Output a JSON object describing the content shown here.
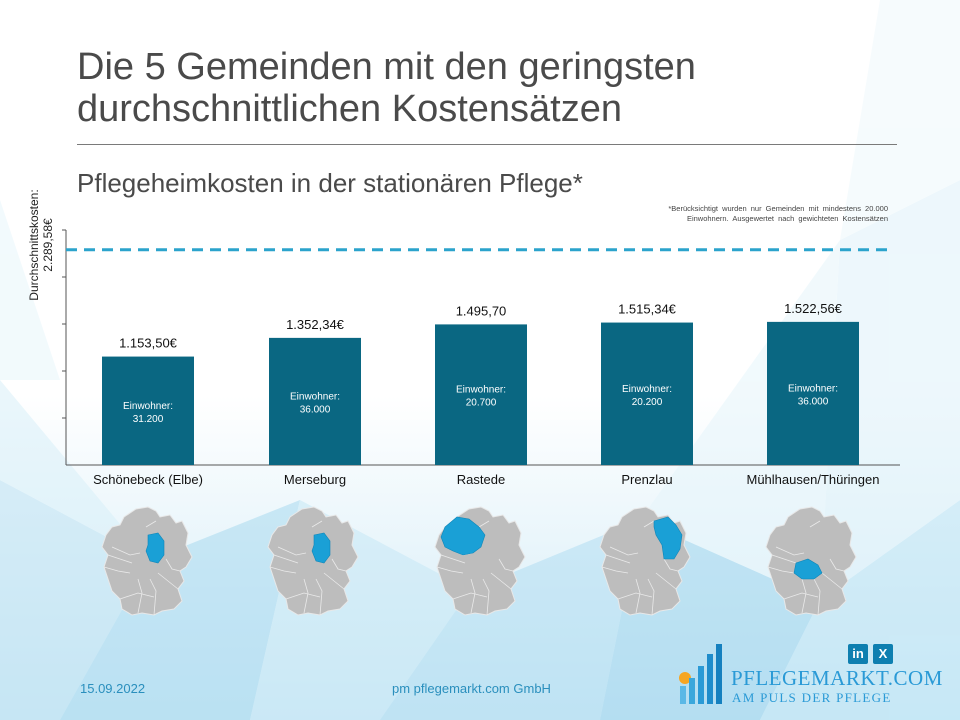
{
  "header": {
    "title_line1": "Die 5 Gemeinden mit den geringsten",
    "title_line2": "durchschnittlichen Kostensätzen",
    "subtitle": "Pflegeheimkosten in der stationären Pflege*",
    "footnote_line1": "*Berücksichtigt wurden nur Gemeinden mit mindestens 20.000",
    "footnote_line2": "Einwohnern. Ausgewertet nach gewichteten Kostensätzen"
  },
  "chart_data": {
    "type": "bar",
    "title": "Pflegeheimkosten in der stationären Pflege*",
    "categories": [
      "Schönebeck (Elbe)",
      "Merseburg",
      "Rastede",
      "Prenzlau",
      "Mühlhausen/Thüringen"
    ],
    "values": [
      1153.5,
      1352.34,
      1495.7,
      1515.34,
      1522.56
    ],
    "value_labels": [
      "1.153,50€",
      "1.352,34€",
      "1.495,70",
      "1.515,34€",
      "1.522,56€"
    ],
    "inner_label_prefix": "Einwohner:",
    "inner_labels": [
      "31.200",
      "36.000",
      "20.700",
      "20.200",
      "36.000"
    ],
    "ylim": [
      0,
      2500
    ],
    "yticks": [
      500,
      1000,
      1500,
      2000,
      2500
    ],
    "reference_line": {
      "value": 2289.58
    },
    "ylabel_line1": "Durchschnittskosten:",
    "ylabel_line2": "2.289,58€",
    "bar_color": "#0a6782",
    "reference_color": "#2ba3cc"
  },
  "maps": [
    {
      "name": "map-schoenebeck",
      "highlight": "Sachsen-Anhalt"
    },
    {
      "name": "map-merseburg",
      "highlight": "Sachsen-Anhalt"
    },
    {
      "name": "map-rastede",
      "highlight": "Niedersachsen"
    },
    {
      "name": "map-prenzlau",
      "highlight": "Brandenburg"
    },
    {
      "name": "map-muehlhausen",
      "highlight": "Thüringen"
    }
  ],
  "footer": {
    "date": "15.09.2022",
    "company": "pm pflegemarkt.com GmbH",
    "logo_name": "PFLEGEMARKT.COM",
    "logo_tagline": "AM PULS DER PFLEGE",
    "linkedin_label": "in",
    "xing_label": "X"
  }
}
